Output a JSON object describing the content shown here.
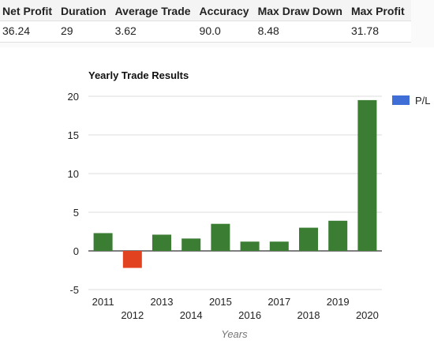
{
  "stats": {
    "headers": [
      "Net Profit",
      "Duration",
      "Average Trade",
      "Accuracy",
      "Max Draw Down",
      "Max Profit"
    ],
    "values": [
      "36.24",
      "29",
      "3.62",
      "90.0",
      "8.48",
      "31.78"
    ]
  },
  "chart_data": {
    "type": "bar",
    "title": "Yearly Trade Results",
    "xlabel": "Years",
    "ylabel": "",
    "categories": [
      "2011",
      "2012",
      "2013",
      "2014",
      "2015",
      "2016",
      "2017",
      "2018",
      "2019",
      "2020"
    ],
    "series": [
      {
        "name": "P/L",
        "values": [
          2.3,
          -2.2,
          2.1,
          1.6,
          3.5,
          1.2,
          1.2,
          3.0,
          3.9,
          19.5
        ]
      }
    ],
    "ylim": [
      -5,
      20
    ],
    "yticks": [
      -5,
      0,
      5,
      10,
      15,
      20
    ],
    "grid": true,
    "legend": "right",
    "colors": {
      "positive": "#3a7d33",
      "negative": "#e2421f",
      "legend": "#3f6fd6"
    }
  }
}
